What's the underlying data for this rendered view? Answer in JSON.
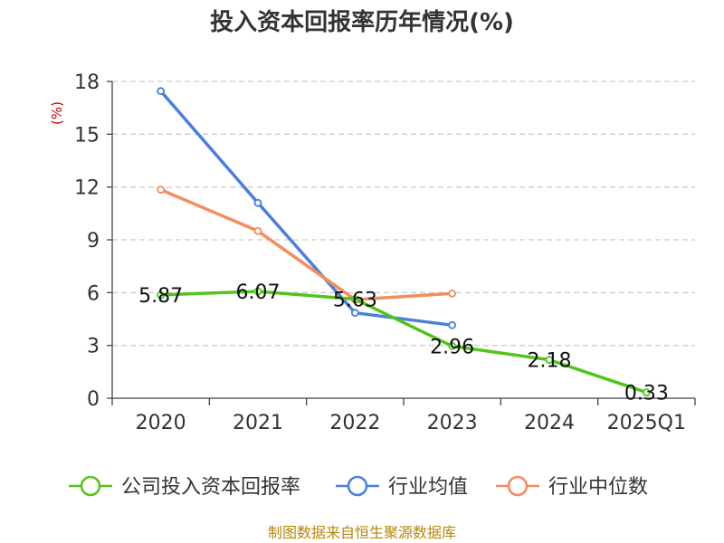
{
  "chart_data": {
    "type": "line",
    "title": "投入资本回报率历年情况(%)",
    "ylabel": "(%)",
    "categories": [
      "2020",
      "2021",
      "2022",
      "2023",
      "2024",
      "2025Q1"
    ],
    "ylim": [
      0,
      18
    ],
    "yticks": [
      "0",
      "3",
      "6",
      "9",
      "12",
      "15",
      "18"
    ],
    "grid": true,
    "legend_position": "bottom",
    "series": [
      {
        "name": "公司投入资本回报率",
        "color": "#52c41a",
        "values": [
          5.87,
          6.07,
          5.63,
          2.96,
          2.18,
          0.33
        ],
        "labels": [
          "5.87",
          "6.07",
          "5.63",
          "2.96",
          "2.18",
          "0.33"
        ]
      },
      {
        "name": "行业均值",
        "color": "#4a7fdc",
        "values": [
          17.45,
          11.1,
          4.85,
          4.15,
          null,
          null
        ]
      },
      {
        "name": "行业中位数",
        "color": "#f48c5c",
        "values": [
          11.85,
          9.5,
          5.6,
          5.95,
          null,
          null
        ]
      }
    ]
  },
  "source": "制图数据来自恒生聚源数据库"
}
